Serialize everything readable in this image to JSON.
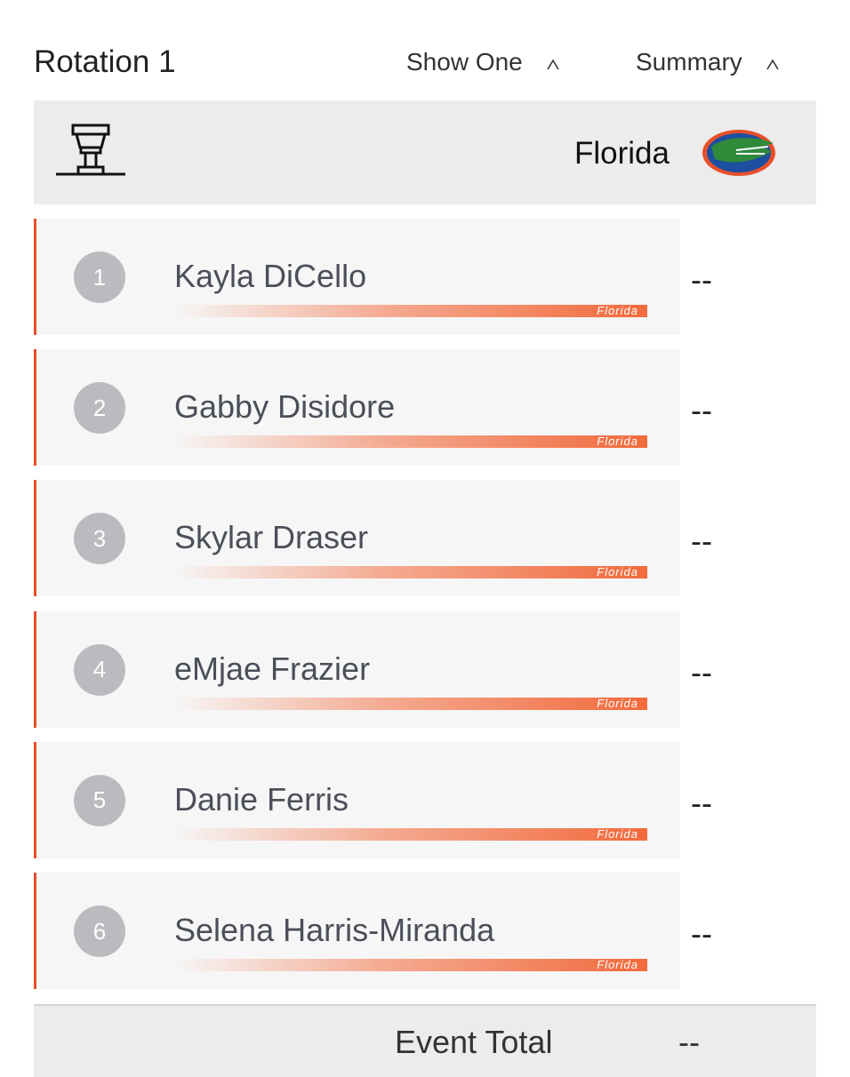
{
  "header": {
    "title": "Rotation 1",
    "tabs": [
      "Show One",
      "Summary"
    ]
  },
  "team": "Florida",
  "rows": [
    {
      "order": "1",
      "name": "Kayla DiCello",
      "team": "Florida",
      "score": "--"
    },
    {
      "order": "2",
      "name": "Gabby Disidore",
      "team": "Florida",
      "score": "--"
    },
    {
      "order": "3",
      "name": "Skylar Draser",
      "team": "Florida",
      "score": "--"
    },
    {
      "order": "4",
      "name": "eMjae Frazier",
      "team": "Florida",
      "score": "--"
    },
    {
      "order": "5",
      "name": "Danie Ferris",
      "team": "Florida",
      "score": "--"
    },
    {
      "order": "6",
      "name": "Selena Harris-Miranda",
      "team": "Florida",
      "score": "--"
    }
  ],
  "footer": {
    "label": "Event Total",
    "score": "--"
  }
}
